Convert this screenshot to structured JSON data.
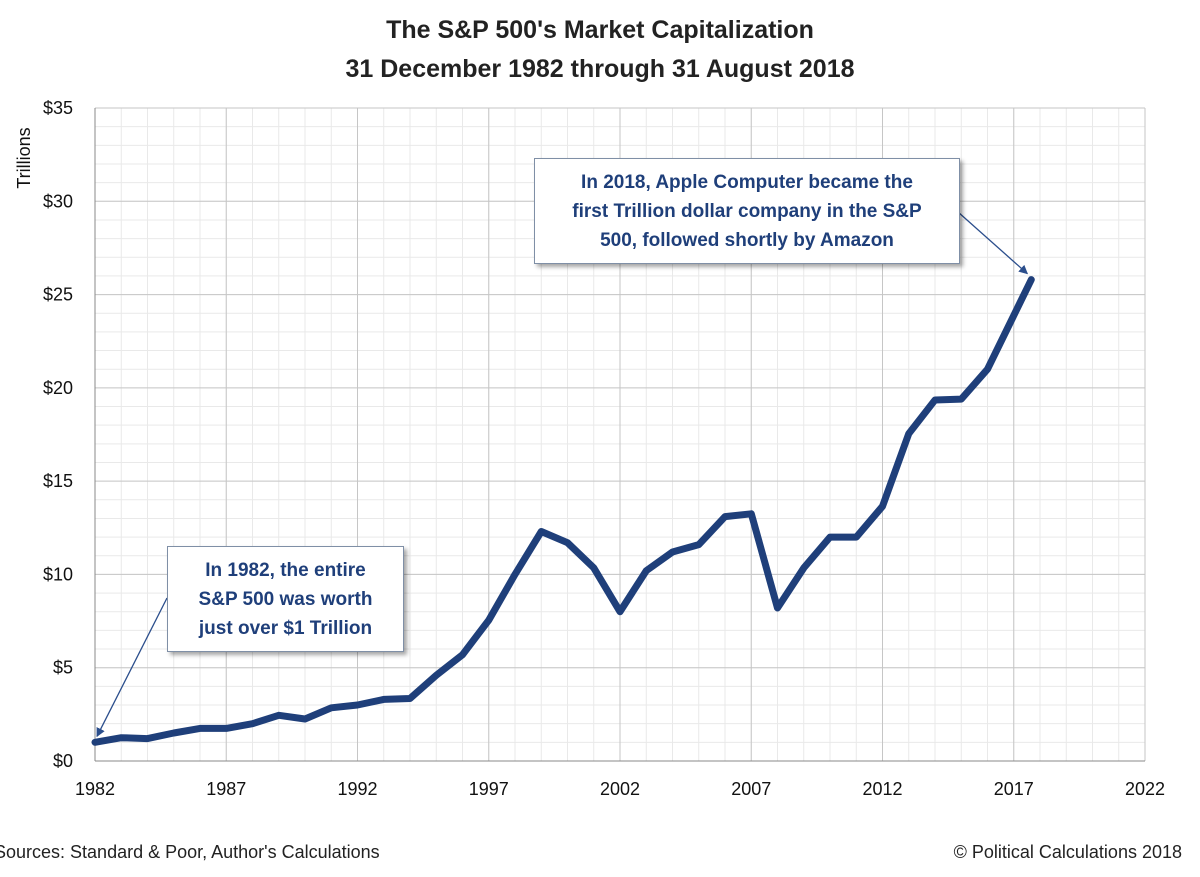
{
  "chart_data": {
    "type": "line",
    "title": "The S&P 500's Market Capitalization",
    "subtitle": "31 December 1982 through 31 August 2018",
    "xlabel": "",
    "ylabel": "Trillions",
    "xlim": [
      1982,
      2022
    ],
    "ylim": [
      0,
      35
    ],
    "x_ticks": [
      1982,
      1987,
      1992,
      1997,
      2002,
      2007,
      2012,
      2017,
      2022
    ],
    "y_ticks": [
      0,
      5,
      10,
      15,
      20,
      25,
      30,
      35
    ],
    "y_tick_labels": [
      "$0",
      "$5",
      "$10",
      "$15",
      "$20",
      "$25",
      "$30",
      "$35"
    ],
    "grid": true,
    "series": [
      {
        "name": "S&P 500 Market Capitalization",
        "color": "#1f3f7a",
        "x": [
          1982,
          1983,
          1984,
          1985,
          1986,
          1987,
          1988,
          1989,
          1990,
          1991,
          1992,
          1993,
          1994,
          1995,
          1996,
          1997,
          1998,
          1999,
          2000,
          2001,
          2002,
          2003,
          2004,
          2005,
          2006,
          2007,
          2008,
          2009,
          2010,
          2011,
          2012,
          2013,
          2014,
          2015,
          2016,
          2017.67
        ],
        "values": [
          1.0,
          1.25,
          1.2,
          1.5,
          1.75,
          1.75,
          2.0,
          2.45,
          2.25,
          2.85,
          3.0,
          3.3,
          3.35,
          4.6,
          5.7,
          7.55,
          10.0,
          12.3,
          11.7,
          10.35,
          8.0,
          10.2,
          11.2,
          11.6,
          13.1,
          13.25,
          8.2,
          10.35,
          12.0,
          12.0,
          13.65,
          17.55,
          19.35,
          19.4,
          21.0,
          25.8
        ]
      }
    ],
    "annotations": [
      {
        "text": "In 2018, Apple Computer became the\nfirst Trillion dollar company in the S&P\n500, followed shortly by Amazon",
        "target": [
          2017.67,
          25.8
        ]
      },
      {
        "text": "In 1982, the entire\nS&P 500 was worth\njust over $1 Trillion",
        "target": [
          1982,
          1.0
        ]
      }
    ]
  },
  "footer": {
    "source": "Sources: Standard & Poor, Author's Calculations",
    "copyright": "© Political Calculations 2018"
  }
}
